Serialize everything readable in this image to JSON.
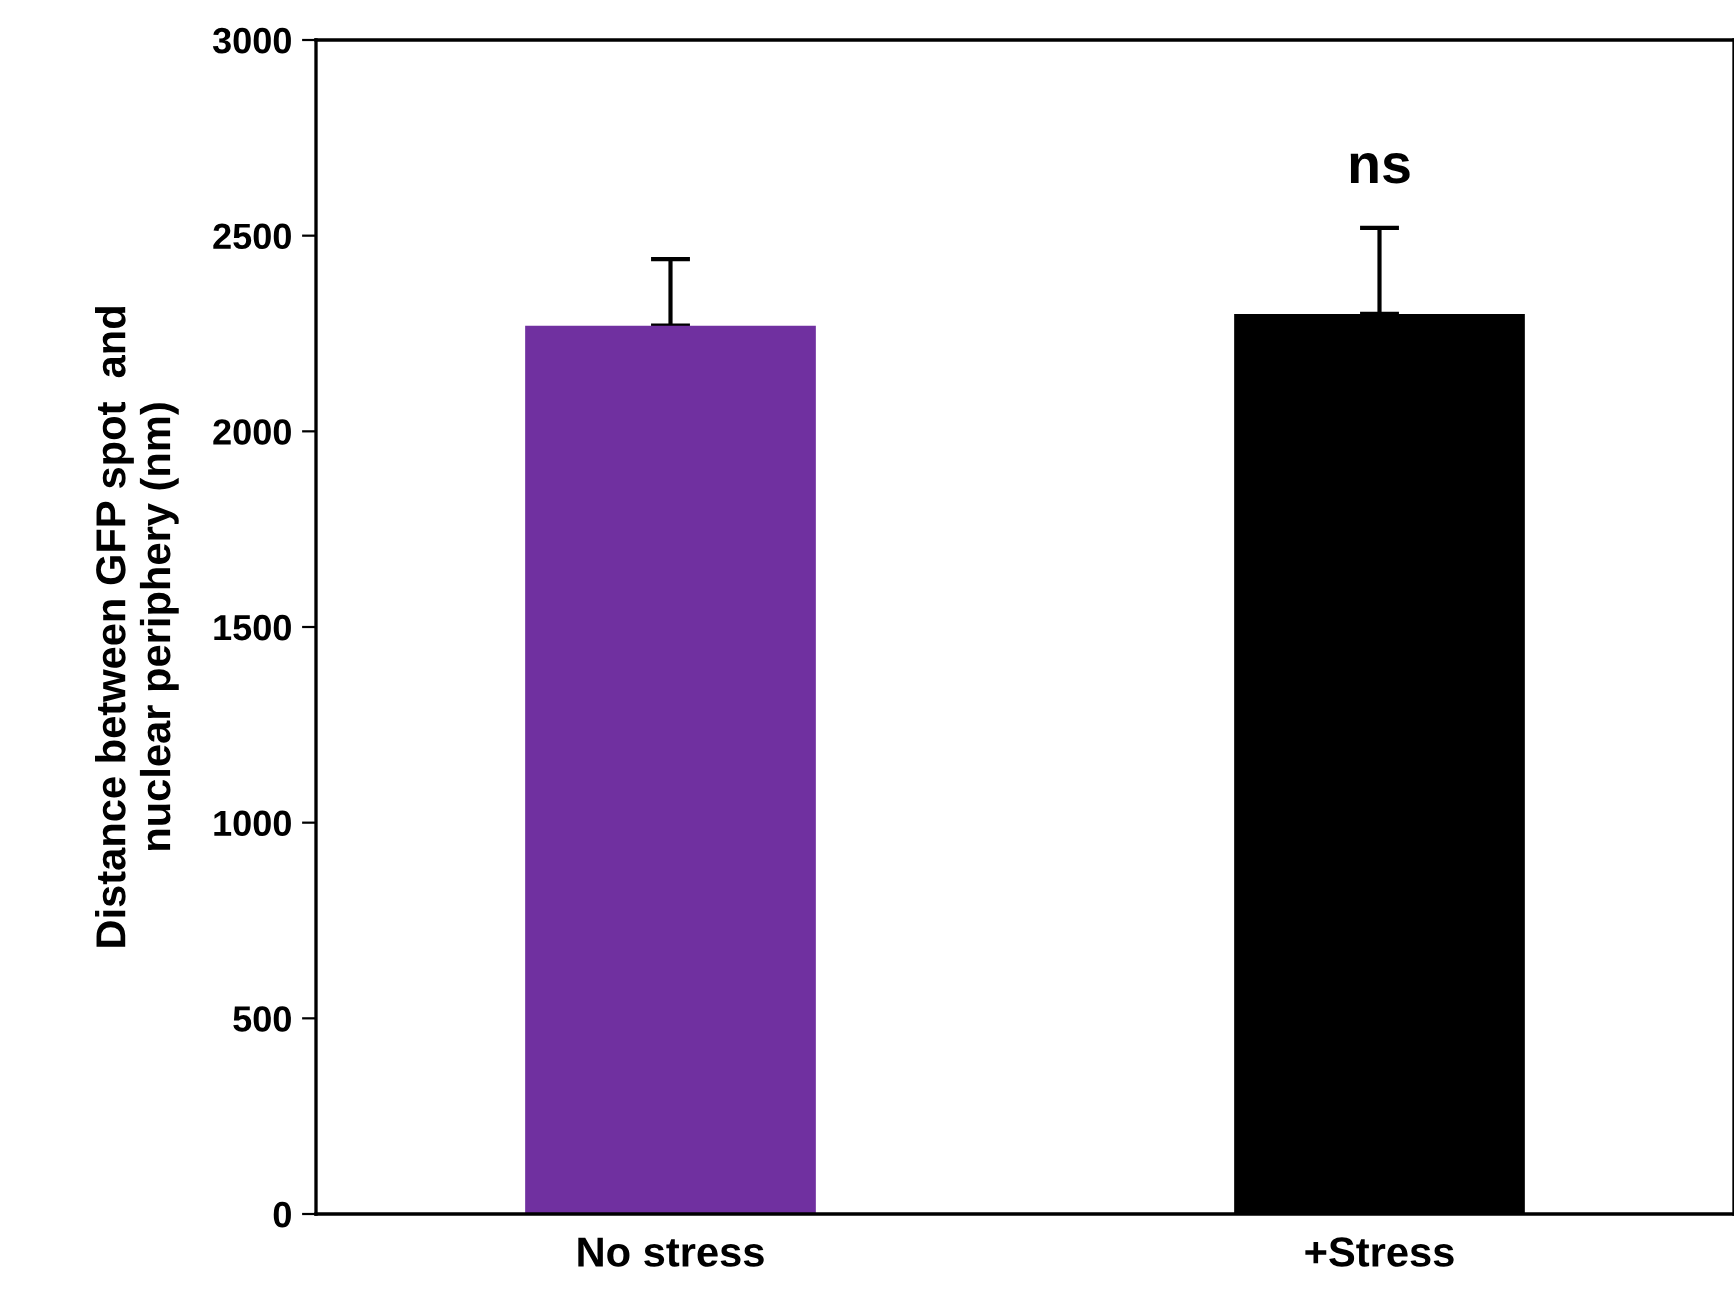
{
  "chart_data": {
    "type": "bar",
    "ylabel": "Distance between GFP spot  and\nnuclear periphery (nm)",
    "categories": [
      "No stress",
      "+Stress"
    ],
    "values": [
      2270,
      2300
    ],
    "colors": [
      "#7030a0",
      "#000000"
    ],
    "errors": [
      [
        2270,
        2440
      ],
      [
        2300,
        2520
      ]
    ],
    "ylim": [
      0,
      3000
    ],
    "yticks": [
      0,
      500,
      1000,
      1500,
      2000,
      2500,
      3000
    ],
    "annotations": [
      "ns"
    ],
    "grid": false,
    "legend": false
  }
}
